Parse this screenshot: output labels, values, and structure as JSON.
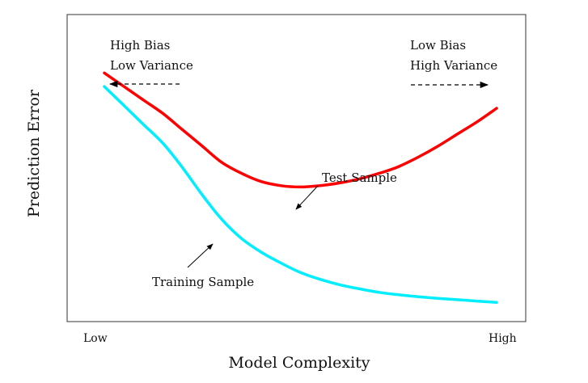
{
  "chart_data": {
    "type": "line",
    "title": "",
    "xlabel": "Model Complexity",
    "ylabel": "Prediction Error",
    "x_tick_labels": {
      "left": "Low",
      "right": "High"
    },
    "xlim": [
      0,
      1
    ],
    "ylim": [
      0,
      1
    ],
    "grid": false,
    "legend": "none",
    "series": [
      {
        "name": "Test Sample",
        "color": "#ff0000",
        "x": [
          0.0,
          0.05,
          0.1,
          0.15,
          0.2,
          0.25,
          0.3,
          0.35,
          0.4,
          0.45,
          0.5,
          0.55,
          0.6,
          0.65,
          0.7,
          0.75,
          0.8,
          0.85,
          0.9,
          0.95,
          1.0
        ],
        "y": [
          0.88,
          0.83,
          0.78,
          0.73,
          0.67,
          0.61,
          0.55,
          0.51,
          0.48,
          0.465,
          0.46,
          0.465,
          0.475,
          0.49,
          0.51,
          0.535,
          0.57,
          0.61,
          0.655,
          0.7,
          0.75
        ]
      },
      {
        "name": "Training Sample",
        "color": "#00eeff",
        "x": [
          0.0,
          0.05,
          0.1,
          0.15,
          0.2,
          0.25,
          0.3,
          0.35,
          0.4,
          0.45,
          0.5,
          0.55,
          0.6,
          0.65,
          0.7,
          0.75,
          0.8,
          0.85,
          0.9,
          0.95,
          1.0
        ],
        "y": [
          0.83,
          0.76,
          0.69,
          0.62,
          0.53,
          0.43,
          0.34,
          0.27,
          0.22,
          0.18,
          0.145,
          0.12,
          0.1,
          0.085,
          0.072,
          0.063,
          0.056,
          0.05,
          0.045,
          0.04,
          0.035
        ]
      }
    ],
    "annotations": {
      "left_region": {
        "line1": "High Bias",
        "line2": "Low Variance"
      },
      "right_region": {
        "line1": "Low Bias",
        "line2": "High Variance"
      },
      "test_sample_label": "Test Sample",
      "training_sample_label": "Training Sample"
    }
  }
}
